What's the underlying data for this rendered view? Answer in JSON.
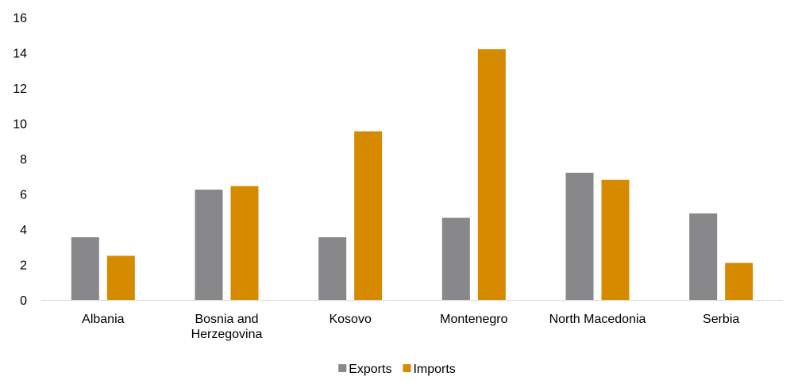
{
  "chart_data": {
    "type": "bar",
    "categories": [
      [
        "Albania"
      ],
      [
        "Bosnia and",
        "Herzegovina"
      ],
      [
        "Kosovo"
      ],
      [
        "Montenegro"
      ],
      [
        "North Macedonia"
      ],
      [
        "Serbia"
      ]
    ],
    "series": [
      {
        "name": "Exports",
        "color": "#88878a",
        "values": [
          3.55,
          6.25,
          3.55,
          4.65,
          7.2,
          4.9
        ]
      },
      {
        "name": "Imports",
        "color": "#d68a00",
        "values": [
          2.5,
          6.45,
          9.55,
          14.2,
          6.8,
          2.1
        ]
      }
    ],
    "ylim": [
      0,
      16
    ],
    "yticks": [
      0,
      2,
      4,
      6,
      8,
      10,
      12,
      14,
      16
    ],
    "grid": false,
    "legend": "bottom-center"
  }
}
